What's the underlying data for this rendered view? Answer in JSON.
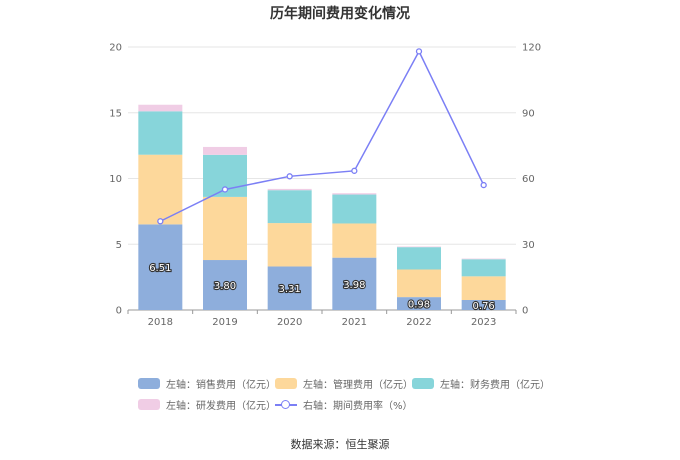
{
  "chart_data": {
    "type": "bar",
    "title": "历年期间费用变化情况",
    "categories": [
      "2018",
      "2019",
      "2020",
      "2021",
      "2022",
      "2023"
    ],
    "series": [
      {
        "name": "左轴：销售费用（亿元）",
        "axis": "left",
        "stack": "cost",
        "color": "#8eaedc",
        "values": [
          6.51,
          3.8,
          3.31,
          3.98,
          0.98,
          0.76
        ],
        "labels": [
          "6.51",
          "3.80",
          "3.31",
          "3.98",
          "0.98",
          "0.76"
        ]
      },
      {
        "name": "左轴：管理费用（亿元）",
        "axis": "left",
        "stack": "cost",
        "color": "#fdd89b",
        "values": [
          5.3,
          4.8,
          3.3,
          2.6,
          2.1,
          1.8
        ]
      },
      {
        "name": "左轴：财务费用（亿元）",
        "axis": "left",
        "stack": "cost",
        "color": "#87d5da",
        "values": [
          3.3,
          3.2,
          2.5,
          2.2,
          1.7,
          1.3
        ]
      },
      {
        "name": "左轴：研发费用（亿元）",
        "axis": "left",
        "stack": "cost",
        "color": "#f0cde5",
        "values": [
          0.5,
          0.6,
          0.1,
          0.1,
          0.05,
          0.05
        ]
      },
      {
        "name": "右轴：期间费用率（%）",
        "axis": "right",
        "type": "line",
        "color": "#7b7ff5",
        "values": [
          40.5,
          55.0,
          61.0,
          63.5,
          118.0,
          57.0
        ]
      }
    ],
    "left_axis": {
      "ylim": [
        0,
        20
      ],
      "ticks": [
        "0",
        "5",
        "10",
        "15",
        "20"
      ]
    },
    "right_axis": {
      "ylim": [
        0,
        120
      ],
      "ticks": [
        "0",
        "30",
        "60",
        "90",
        "120"
      ]
    },
    "grid": true,
    "legend_position": "bottom"
  },
  "source": "数据来源：恒生聚源"
}
